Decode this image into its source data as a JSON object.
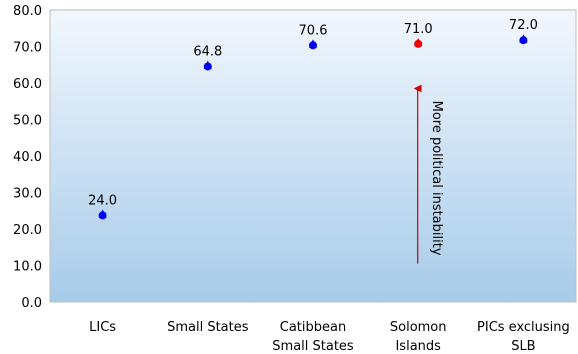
{
  "chart_data": {
    "type": "scatter",
    "title": "",
    "xlabel": "",
    "ylabel": "",
    "ylim": [
      0,
      80
    ],
    "yticks": [
      0,
      10,
      20,
      30,
      40,
      50,
      60,
      70,
      80
    ],
    "y_tick_labels": [
      "0.0",
      "10.0",
      "20.0",
      "30.0",
      "40.0",
      "50.0",
      "60.0",
      "70.0",
      "80.0"
    ],
    "grid": false,
    "legend": "none",
    "categories": [
      [
        "LICs"
      ],
      [
        "Small States"
      ],
      [
        "Catibbean",
        "Small States"
      ],
      [
        "Solomon",
        "Islands"
      ],
      [
        "PICs exclusing",
        "SLB"
      ]
    ],
    "values": [
      24.0,
      64.8,
      70.6,
      71.0,
      72.0
    ],
    "data_labels": [
      "24.0",
      "64.8",
      "70.6",
      "71.0",
      "72.0"
    ],
    "point_colors": [
      "#0000ee",
      "#0000ee",
      "#0000ee",
      "#ee0000",
      "#0000ee"
    ],
    "annotation": {
      "text": "More political instability",
      "category_index": 3,
      "y_from": 10.5,
      "y_to": 58.5,
      "color": "#cc0000"
    },
    "background_gradient": [
      "#f2f7fd",
      "#a7cbea"
    ]
  }
}
